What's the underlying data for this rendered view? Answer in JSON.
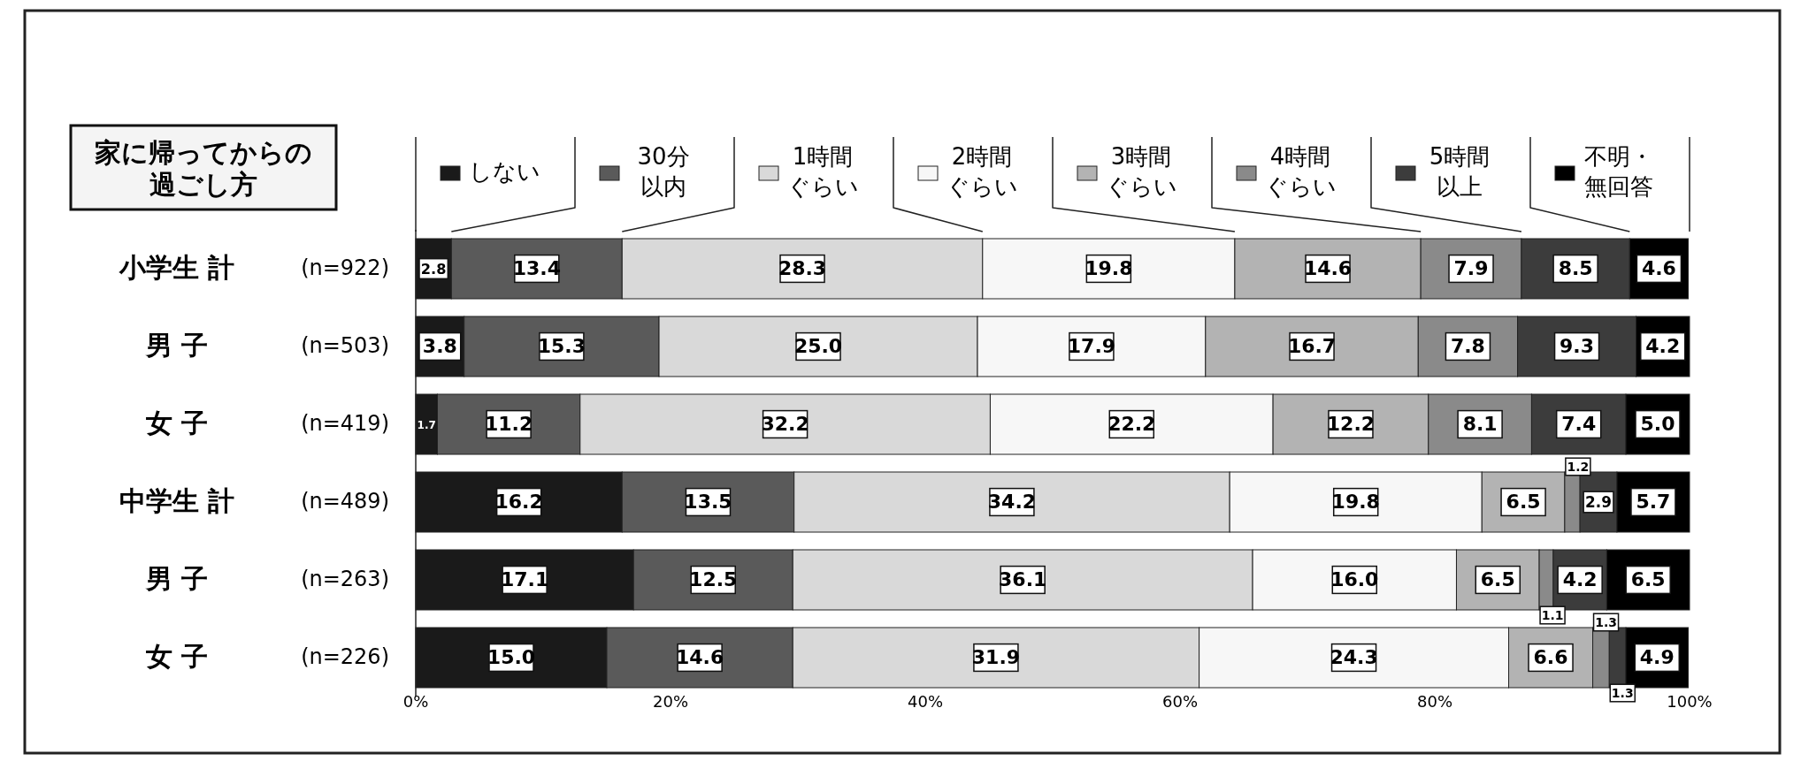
{
  "chart_data": {
    "type": "bar",
    "orientation": "horizontal",
    "stacked": true,
    "title": "家に帰ってからの過ごし方",
    "categories": [
      "小学生 計　(n=922)",
      "男 子　(n=503)",
      "女 子　(n=419)",
      "中学生 計　(n=489)",
      "男 子　(n=263)",
      "女 子　(n=226)"
    ],
    "series": [
      {
        "name": "しない",
        "color": "#1a1a1a",
        "values": [
          2.8,
          3.8,
          1.7,
          16.2,
          17.1,
          15.0
        ],
        "value_labels": [
          "2.8",
          "3.8",
          "1.7",
          "16.2",
          "17.1",
          "15.0"
        ]
      },
      {
        "name": "30分以内",
        "color": "#5a5a5a",
        "values": [
          13.4,
          15.3,
          11.2,
          13.5,
          12.5,
          14.6
        ],
        "value_labels": [
          "13.4",
          "15.3",
          "11.2",
          "13.5",
          "12.5",
          "14.6"
        ]
      },
      {
        "name": "1時間ぐらい",
        "color": "#d9d9d9",
        "values": [
          28.3,
          25.0,
          32.2,
          34.2,
          36.1,
          31.9
        ],
        "value_labels": [
          "28.3",
          "25.0",
          "32.2",
          "34.2",
          "36.1",
          "31.9"
        ]
      },
      {
        "name": "2時間ぐらい",
        "color": "#f7f7f7",
        "values": [
          19.8,
          17.9,
          22.2,
          19.8,
          16.0,
          24.3
        ],
        "value_labels": [
          "19.8",
          "17.9",
          "22.2",
          "19.8",
          "16.0",
          "24.3"
        ]
      },
      {
        "name": "3時間ぐらい",
        "color": "#b3b3b3",
        "values": [
          14.6,
          16.7,
          12.2,
          6.5,
          6.5,
          6.6
        ],
        "value_labels": [
          "14.6",
          "16.7",
          "12.2",
          "6.5",
          "6.5",
          "6.6"
        ]
      },
      {
        "name": "4時間ぐらい",
        "color": "#8a8a8a",
        "values": [
          7.9,
          7.8,
          8.1,
          1.2,
          1.1,
          1.3
        ],
        "value_labels": [
          "7.9",
          "7.8",
          "8.1",
          "1.2",
          "1.1",
          "1.3"
        ]
      },
      {
        "name": "5時間以上",
        "color": "#3c3c3c",
        "values": [
          8.5,
          9.3,
          7.4,
          2.9,
          4.2,
          1.3
        ],
        "value_labels": [
          "8.5",
          "9.3",
          "7.4",
          "2.9",
          "4.2",
          "1.3"
        ]
      },
      {
        "name": "不明・無回答",
        "color": "#000000",
        "values": [
          4.6,
          4.2,
          5.0,
          5.7,
          6.5,
          4.9
        ],
        "value_labels": [
          "4.6",
          "4.2",
          "5.0",
          "5.7",
          "6.5",
          "4.9"
        ]
      }
    ],
    "xlim": [
      0,
      100
    ],
    "xticks": [
      {
        "value": 0,
        "label": "0%"
      },
      {
        "value": 20,
        "label": "20%"
      },
      {
        "value": 40,
        "label": "40%"
      },
      {
        "value": 60,
        "label": "60%"
      },
      {
        "value": 80,
        "label": "80%"
      },
      {
        "value": 100,
        "label": "100%"
      }
    ],
    "legend": "top"
  }
}
